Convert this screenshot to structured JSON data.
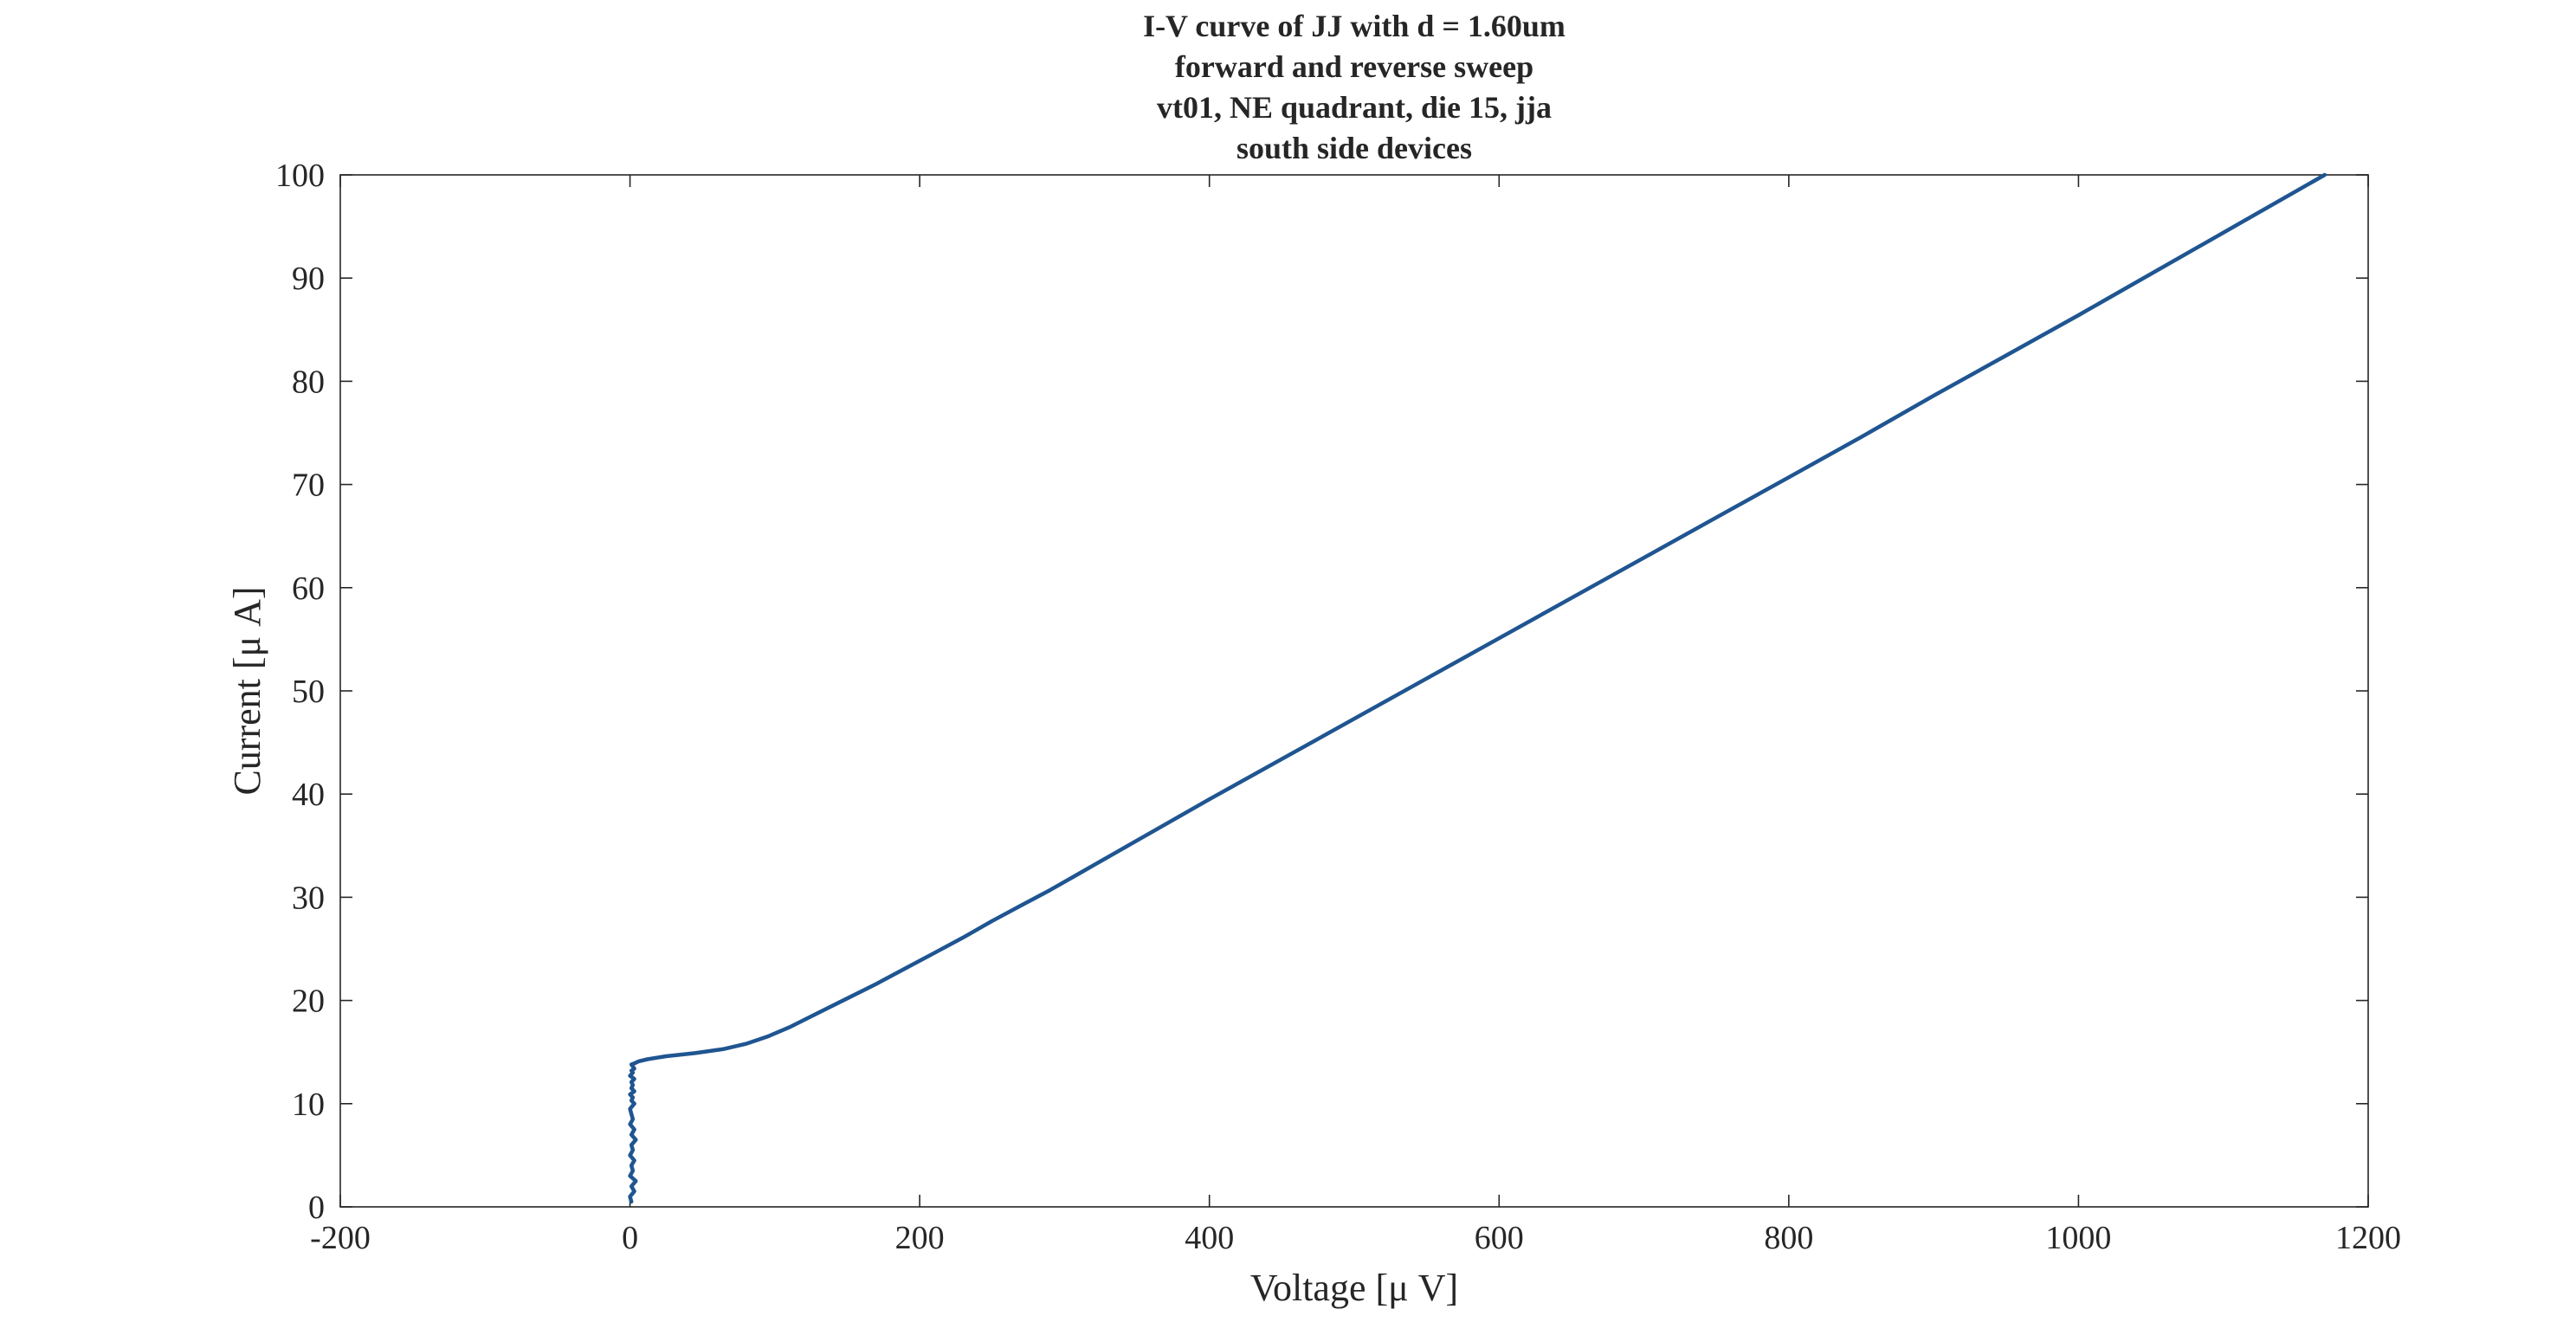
{
  "chart_data": {
    "type": "line",
    "title": [
      "I-V curve of JJ with d = 1.60um",
      "forward and reverse sweep",
      "vt01, NE quadrant, die 15, jja",
      "south side devices"
    ],
    "xlabel": "Voltage [μ V]",
    "ylabel": "Current [μ A]",
    "xlim": [
      -200,
      1200
    ],
    "ylim": [
      0,
      100
    ],
    "xticks": [
      -200,
      0,
      200,
      400,
      600,
      800,
      1000,
      1200
    ],
    "yticks": [
      0,
      10,
      20,
      30,
      40,
      50,
      60,
      70,
      80,
      90,
      100
    ],
    "grid": false,
    "legend": "none",
    "series": [
      {
        "color": "#1f5591",
        "x": [
          1,
          0,
          3,
          1,
          4,
          0,
          2,
          1,
          3,
          0,
          2,
          1,
          4,
          1,
          3,
          0,
          2,
          1,
          0,
          3,
          1,
          2,
          0,
          3,
          1,
          2,
          1,
          3,
          0,
          2,
          1,
          3,
          2,
          1,
          3,
          6,
          12,
          25,
          45,
          65,
          80,
          95,
          110,
          130,
          150,
          170,
          190,
          210,
          230,
          250,
          270,
          290,
          310,
          330,
          350,
          370,
          400,
          450,
          500,
          550,
          600,
          650,
          700,
          750,
          800,
          850,
          900,
          950,
          1000,
          1020
        ],
        "y": [
          0.5,
          1.0,
          1.5,
          2.0,
          2.5,
          3.0,
          3.5,
          4.0,
          4.5,
          5.0,
          5.5,
          6.0,
          6.5,
          7.0,
          7.5,
          8.0,
          8.5,
          9.0,
          9.5,
          10.0,
          10.3,
          10.6,
          10.9,
          11.2,
          11.5,
          11.8,
          12.1,
          12.4,
          12.7,
          13.0,
          13.2,
          13.4,
          13.6,
          13.8,
          13.9,
          14.1,
          14.3,
          14.6,
          14.9,
          15.3,
          15.8,
          16.5,
          17.4,
          18.8,
          20.2,
          21.6,
          23.1,
          24.6,
          26.1,
          27.7,
          29.2,
          30.7,
          32.3,
          33.9,
          35.5,
          37.1,
          39.5,
          43.4,
          47.3,
          51.2,
          55.1,
          59.0,
          62.9,
          66.8,
          70.7,
          74.6,
          78.6,
          82.5,
          86.4,
          88.0
        ],
        "y_continued_note": ""
      }
    ]
  }
}
